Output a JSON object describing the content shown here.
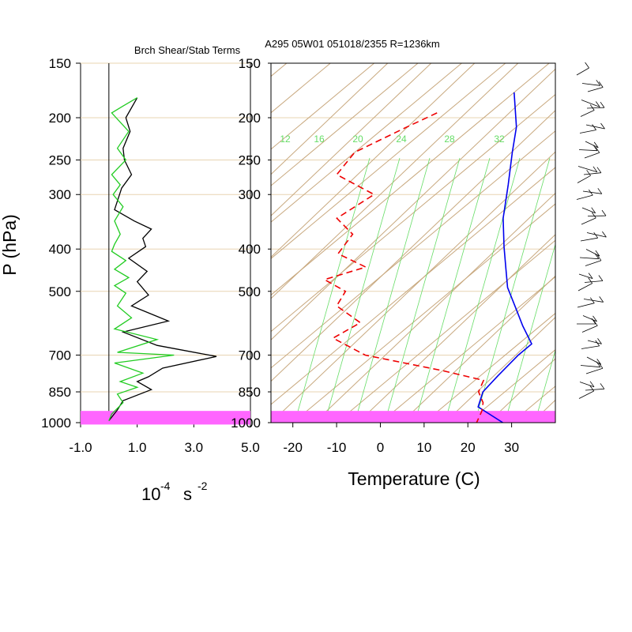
{
  "title": "A295 05W01 051018/2355 R=1236km",
  "left_panel": {
    "title": "Brch Shear/Stab Terms",
    "unit_label": "10",
    "unit_exp": "-4",
    "unit_s": "s",
    "unit_s_exp": "-2"
  },
  "y_axis_label": "P (hPa)",
  "x_axis_label": "Temperature (C)",
  "colors": {
    "isotherm": "#c8a87e",
    "pressure_line": "#e8d4b2",
    "mixing_ratio": "#66dd66",
    "temperature": "#0000ee",
    "dewpoint": "#ee0000",
    "shear_series": "#000000",
    "stability_series": "#22cc22",
    "surface_band": "#ff66ff"
  },
  "chart_data": [
    {
      "type": "line",
      "panel": "left",
      "title": "Brch Shear/Stab Terms",
      "xlim": [
        -1.0,
        5.0
      ],
      "x_ticks": [
        "-1.0",
        "1.0",
        "3.0",
        "5.0"
      ],
      "y_ticks": [
        "150",
        "200",
        "250",
        "300",
        "400",
        "500",
        "700",
        "850",
        "1000"
      ],
      "y_scale": "log-pressure",
      "series": [
        {
          "color": "#000000",
          "points": [
            [
              1.0,
              180
            ],
            [
              0.6,
              200
            ],
            [
              0.75,
              215
            ],
            [
              0.5,
              235
            ],
            [
              0.55,
              250
            ],
            [
              0.8,
              270
            ],
            [
              0.45,
              290
            ],
            [
              0.2,
              325
            ],
            [
              0.9,
              345
            ],
            [
              1.5,
              360
            ],
            [
              1.2,
              378
            ],
            [
              1.3,
              395
            ],
            [
              0.7,
              420
            ],
            [
              1.35,
              450
            ],
            [
              1.0,
              475
            ],
            [
              1.4,
              510
            ],
            [
              0.8,
              540
            ],
            [
              2.1,
              585
            ],
            [
              0.5,
              620
            ],
            [
              1.7,
              665
            ],
            [
              3.8,
              705
            ],
            [
              1.9,
              750
            ],
            [
              1.4,
              785
            ],
            [
              1.0,
              805
            ],
            [
              1.5,
              840
            ],
            [
              0.5,
              890
            ],
            [
              0.3,
              935
            ],
            [
              0.0,
              990
            ]
          ]
        },
        {
          "color": "#22cc22",
          "points": [
            [
              1.0,
              180
            ],
            [
              0.5,
              188
            ],
            [
              0.1,
              195
            ],
            [
              0.7,
              215
            ],
            [
              0.3,
              235
            ],
            [
              0.6,
              250
            ],
            [
              0.1,
              270
            ],
            [
              0.4,
              285
            ],
            [
              0.15,
              300
            ],
            [
              0.5,
              320
            ],
            [
              0.2,
              345
            ],
            [
              0.4,
              370
            ],
            [
              0.2,
              390
            ],
            [
              0.1,
              405
            ],
            [
              0.6,
              425
            ],
            [
              0.2,
              445
            ],
            [
              0.7,
              465
            ],
            [
              0.2,
              485
            ],
            [
              0.6,
              505
            ],
            [
              0.3,
              540
            ],
            [
              0.8,
              575
            ],
            [
              0.2,
              610
            ],
            [
              1.7,
              645
            ],
            [
              0.3,
              690
            ],
            [
              2.3,
              700
            ],
            [
              0.2,
              730
            ],
            [
              1.2,
              770
            ],
            [
              0.4,
              805
            ],
            [
              1.0,
              830
            ],
            [
              0.3,
              860
            ],
            [
              0.5,
              900
            ],
            [
              0.1,
              955
            ],
            [
              0.0,
              990
            ]
          ]
        }
      ]
    },
    {
      "type": "line",
      "panel": "skew-t",
      "title": "A295 05W01 051018/2355 R=1236km",
      "xlabel": "Temperature (C)",
      "ylabel": "P (hPa)",
      "xlim": [
        -25,
        40
      ],
      "x_ticks": [
        -20,
        -10,
        0,
        10,
        20,
        30
      ],
      "y_ticks": [
        150,
        200,
        250,
        300,
        400,
        500,
        700,
        850,
        1000
      ],
      "mixing_ratio_labels": [
        "12",
        "16",
        "20",
        "24",
        "28",
        "32"
      ],
      "surface_band_hpa": [
        940,
        1010
      ],
      "series": [
        {
          "color": "#0000ee",
          "dash": "solid",
          "points": [
            [
              -60,
              175
            ],
            [
              -50,
              210
            ],
            [
              -44,
              240
            ],
            [
              -36,
              285
            ],
            [
              -28,
              340
            ],
            [
              -20,
              395
            ],
            [
              -14,
              440
            ],
            [
              -8,
              490
            ],
            [
              0,
              550
            ],
            [
              6,
              600
            ],
            [
              13,
              660
            ],
            [
              13,
              700
            ],
            [
              14,
              780
            ],
            [
              15,
              850
            ],
            [
              18,
              920
            ],
            [
              28,
              1000
            ]
          ]
        },
        {
          "color": "#ee0000",
          "dash": "dashed",
          "points": [
            [
              -72,
              195
            ],
            [
              -75,
              210
            ],
            [
              -80,
              240
            ],
            [
              -78,
              270
            ],
            [
              -64,
              300
            ],
            [
              -66,
              340
            ],
            [
              -58,
              370
            ],
            [
              -56,
              410
            ],
            [
              -46,
              440
            ],
            [
              -52,
              470
            ],
            [
              -44,
              500
            ],
            [
              -42,
              540
            ],
            [
              -32,
              590
            ],
            [
              -34,
              640
            ],
            [
              -22,
              700
            ],
            [
              0,
              760
            ],
            [
              12,
              800
            ],
            [
              14,
              850
            ],
            [
              18,
              900
            ],
            [
              20,
              940
            ],
            [
              22,
              1000
            ]
          ]
        }
      ]
    }
  ]
}
